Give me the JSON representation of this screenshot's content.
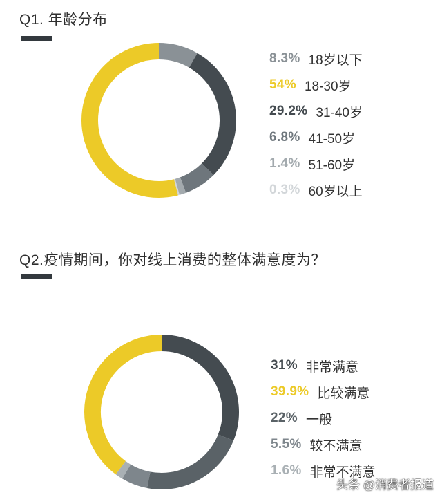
{
  "chart_data": [
    {
      "type": "pie",
      "title": "Q1. 年龄分布",
      "categories": [
        "18岁以下",
        "18-30岁",
        "31-40岁",
        "41-50岁",
        "51-60岁",
        "60岁以上"
      ],
      "values": [
        8.3,
        54,
        29.2,
        6.8,
        1.4,
        0.3
      ],
      "value_labels": [
        "8.3%",
        "54%",
        "29.2%",
        "6.8%",
        "1.4%",
        "0.3%"
      ],
      "colors": [
        "#8a9196",
        "#ecca28",
        "#444b50",
        "#6e767c",
        "#a3aaae",
        "#d2d6d9"
      ],
      "legend_position": "right",
      "donut": true
    },
    {
      "type": "pie",
      "title": "Q2.疫情期间，你对线上消费的整体满意度为？",
      "categories": [
        "非常满意",
        "比较满意",
        "一般",
        "较不满意",
        "非常不满意"
      ],
      "values": [
        31,
        39.9,
        22,
        5.5,
        1.6
      ],
      "value_labels": [
        "31%",
        "39.9%",
        "22%",
        "5.5%",
        "1.6%"
      ],
      "colors": [
        "#444b50",
        "#ecca28",
        "#5a6267",
        "#7e868c",
        "#a9b0b4"
      ],
      "legend_position": "right",
      "donut": true
    }
  ],
  "watermark": "头条 @消费者报道"
}
